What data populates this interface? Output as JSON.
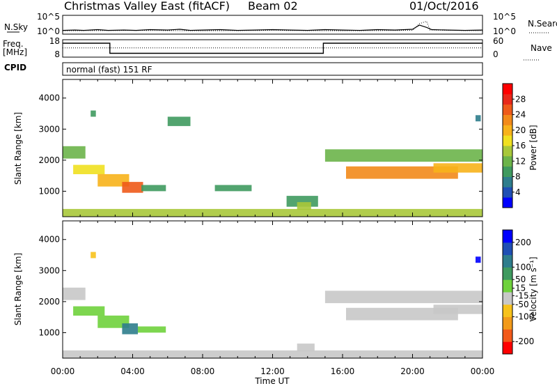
{
  "header": {
    "station": "Christmas Valley East (fitACF)",
    "beam": "Beam 02",
    "date": "01/Oct/2016"
  },
  "colors": {
    "background": "#ffffff",
    "foreground": "#000000",
    "empty": "#ffffff",
    "ground_scatter": "#c8c8c8"
  },
  "chart_data": [
    {
      "type": "line",
      "panel": "noise",
      "left_label": "N.Sky",
      "right_label": "N.Search",
      "left_ticks": [
        "10^5",
        "10^0"
      ],
      "right_ticks": [
        "10^5",
        "10^0"
      ],
      "ylim": [
        0,
        5
      ],
      "xlim": [
        0,
        24
      ],
      "note": "noise level traces near 10^0 with sporadic spikes",
      "series": [
        {
          "key": "sky",
          "style": "solid",
          "x": [
            0,
            0.7,
            1.2,
            2.0,
            2.6,
            3.5,
            4.2,
            5.0,
            6.0,
            6.7,
            7.3,
            8.0,
            9.0,
            10.0,
            11.0,
            12.0,
            13.0,
            14.0,
            15.0,
            16.0,
            17.0,
            18.0,
            19.0,
            20.0,
            20.4,
            20.8,
            21.1,
            22.0,
            23.0,
            24.0
          ],
          "y": [
            1.0,
            1.1,
            1.0,
            1.2,
            1.0,
            1.1,
            1.0,
            1.2,
            1.1,
            1.3,
            1.0,
            1.1,
            1.2,
            1.0,
            1.1,
            1.2,
            1.1,
            1.0,
            1.2,
            1.1,
            1.0,
            1.2,
            1.1,
            1.3,
            2.4,
            1.8,
            1.2,
            1.1,
            1.0,
            1.1
          ]
        },
        {
          "key": "search",
          "style": "dotted",
          "x": [
            0,
            4.0,
            8.0,
            12.0,
            16.0,
            20.0,
            20.4,
            20.8,
            21.0,
            24.0
          ],
          "y": [
            0.9,
            1.0,
            0.9,
            1.0,
            0.9,
            1.0,
            2.8,
            3.4,
            1.1,
            0.9
          ]
        }
      ]
    },
    {
      "type": "line",
      "panel": "freq_nave",
      "left_label": "Freq.",
      "left_unit": "[MHz]",
      "right_label": "Nave",
      "left_ticks": [
        18,
        8
      ],
      "right_ticks": [
        60,
        0
      ],
      "ylim_left": [
        8,
        18
      ],
      "ylim_right": [
        0,
        60
      ],
      "xlim": [
        0,
        24
      ],
      "series": [
        {
          "key": "freq",
          "style": "solid",
          "axis": "left",
          "x": [
            0,
            2.7,
            2.7,
            14.9,
            14.9,
            24
          ],
          "y": [
            16.0,
            16.0,
            10.2,
            10.2,
            16.0,
            16.0
          ]
        },
        {
          "key": "nave",
          "style": "dotted",
          "axis": "right",
          "x": [
            0,
            24
          ],
          "y": [
            32,
            32
          ]
        }
      ]
    },
    {
      "type": "table",
      "panel": "cpid",
      "label": "CPID",
      "text": "normal (fast) 151 RF"
    },
    {
      "type": "heatmap",
      "panel": "power",
      "ylabel": "Slant Range [km]",
      "yticks": [
        1000,
        2000,
        3000,
        4000
      ],
      "ylim": [
        180,
        4600
      ],
      "xlim": [
        0,
        24
      ],
      "colorbar": {
        "label": "Power [dB]",
        "ticks": [
          4,
          8,
          12,
          16,
          20,
          24,
          28
        ],
        "range": [
          0,
          32
        ],
        "colors": [
          "#0000ff",
          "#1f4fb4",
          "#2e7d8c",
          "#3f9a5f",
          "#6cb44a",
          "#a8c83a",
          "#f0e020",
          "#f7b21b",
          "#f28a1a",
          "#ee5a1a",
          "#e8281a",
          "#ff0000"
        ]
      },
      "regions": [
        {
          "x": [
            0,
            1.3
          ],
          "r": [
            2050,
            2450
          ],
          "value": 13
        },
        {
          "x": [
            0.6,
            2.4
          ],
          "r": [
            1550,
            1850
          ],
          "value": 16
        },
        {
          "x": [
            2.0,
            3.8
          ],
          "r": [
            1150,
            1550
          ],
          "value": 21
        },
        {
          "x": [
            3.4,
            4.6
          ],
          "r": [
            950,
            1300
          ],
          "value": 24
        },
        {
          "x": [
            4.5,
            5.9
          ],
          "r": [
            1000,
            1200
          ],
          "value": 10
        },
        {
          "x": [
            8.7,
            10.8
          ],
          "r": [
            1000,
            1200
          ],
          "value": 8
        },
        {
          "x": [
            12.8,
            14.6
          ],
          "r": [
            500,
            850
          ],
          "value": 9
        },
        {
          "x": [
            13.4,
            14.2
          ],
          "r": [
            400,
            650
          ],
          "value": 14
        },
        {
          "x": [
            15.0,
            24.0
          ],
          "r": [
            1950,
            2350
          ],
          "value": 11
        },
        {
          "x": [
            16.2,
            22.6
          ],
          "r": [
            1400,
            1800
          ],
          "value": 22
        },
        {
          "x": [
            21.2,
            24.0
          ],
          "r": [
            1600,
            1900
          ],
          "value": 19
        },
        {
          "x": [
            1.6,
            1.9
          ],
          "r": [
            3400,
            3600
          ],
          "value": 10
        },
        {
          "x": [
            6.0,
            7.3
          ],
          "r": [
            3100,
            3400
          ],
          "value": 8
        },
        {
          "x": [
            23.6,
            23.9
          ],
          "r": [
            3250,
            3450
          ],
          "value": 7
        },
        {
          "x": [
            0.0,
            24.0
          ],
          "r": [
            180,
            430
          ],
          "value": 14
        }
      ]
    },
    {
      "type": "heatmap",
      "panel": "velocity",
      "ylabel": "Slant Range [km]",
      "yticks": [
        1000,
        2000,
        3000,
        4000
      ],
      "ylim": [
        180,
        4600
      ],
      "xlim": [
        0,
        24
      ],
      "xticks": [
        "00:00",
        "04:00",
        "08:00",
        "12:00",
        "16:00",
        "20:00",
        "00:00"
      ],
      "xlabel": "Time UT",
      "colorbar": {
        "label": "Velocity [m s⁻¹]",
        "ticks": [
          -200,
          -100,
          -50,
          -15,
          15,
          50,
          100,
          200
        ],
        "range": [
          -250,
          250
        ],
        "colors": [
          "#ff0000",
          "#f25a1a",
          "#f29a1a",
          "#f7c21b",
          "#c8c8c8",
          "#6fd23c",
          "#3f9a5f",
          "#2e7d8c",
          "#1f4fb4",
          "#0000ff"
        ]
      },
      "regions": [
        {
          "x": [
            0,
            1.3
          ],
          "r": [
            2050,
            2450
          ],
          "value": 0,
          "ground_scatter": true
        },
        {
          "x": [
            0.6,
            2.4
          ],
          "r": [
            1550,
            1850
          ],
          "value": 40
        },
        {
          "x": [
            2.0,
            3.8
          ],
          "r": [
            1150,
            1550
          ],
          "value": 45
        },
        {
          "x": [
            3.4,
            4.3
          ],
          "r": [
            950,
            1300
          ],
          "value": 130
        },
        {
          "x": [
            4.3,
            5.9
          ],
          "r": [
            1000,
            1200
          ],
          "value": 35
        },
        {
          "x": [
            13.4,
            14.4
          ],
          "r": [
            400,
            650
          ],
          "value": 0,
          "ground_scatter": true
        },
        {
          "x": [
            15.0,
            24.0
          ],
          "r": [
            1950,
            2350
          ],
          "value": 0,
          "ground_scatter": true
        },
        {
          "x": [
            16.2,
            22.6
          ],
          "r": [
            1400,
            1800
          ],
          "value": 0,
          "ground_scatter": true
        },
        {
          "x": [
            21.2,
            24.0
          ],
          "r": [
            1600,
            1900
          ],
          "value": 0,
          "ground_scatter": true
        },
        {
          "x": [
            1.6,
            1.9
          ],
          "r": [
            3400,
            3600
          ],
          "value": -60
        },
        {
          "x": [
            23.6,
            23.9
          ],
          "r": [
            3250,
            3450
          ],
          "value": 200
        },
        {
          "x": [
            0.0,
            24.0
          ],
          "r": [
            180,
            430
          ],
          "value": -30
        }
      ]
    }
  ]
}
